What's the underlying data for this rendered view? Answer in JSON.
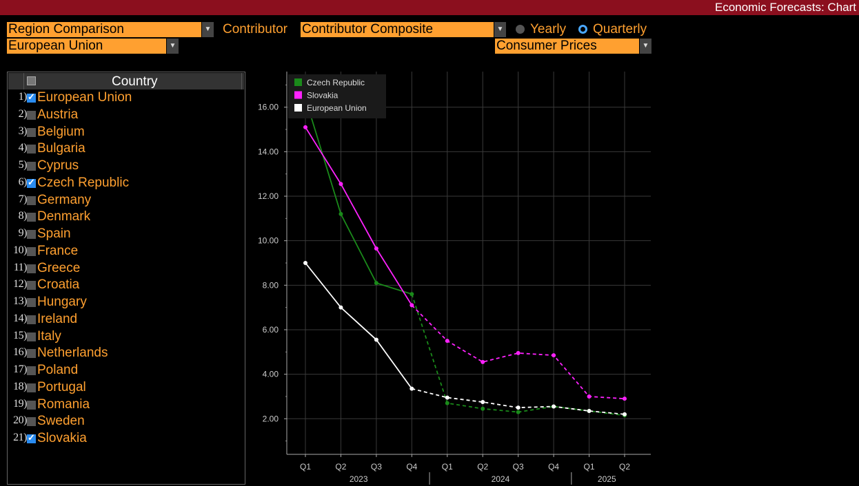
{
  "window": {
    "title": "Economic Forecasts: Chart"
  },
  "controls": {
    "comparison_select": "Region Comparison",
    "region_select": "European Union",
    "contributor_label": "Contributor",
    "contributor_select": "Contributor Composite",
    "indicator_select": "Consumer Prices",
    "frequency_options": [
      "Yearly",
      "Quarterly"
    ],
    "frequency_selected": "Quarterly"
  },
  "country_list": {
    "header": "Country",
    "items": [
      {
        "num": "1)",
        "name": "European Union",
        "checked": true
      },
      {
        "num": "2)",
        "name": "Austria",
        "checked": false
      },
      {
        "num": "3)",
        "name": "Belgium",
        "checked": false
      },
      {
        "num": "4)",
        "name": "Bulgaria",
        "checked": false
      },
      {
        "num": "5)",
        "name": "Cyprus",
        "checked": false
      },
      {
        "num": "6)",
        "name": "Czech Republic",
        "checked": true
      },
      {
        "num": "7)",
        "name": "Germany",
        "checked": false
      },
      {
        "num": "8)",
        "name": "Denmark",
        "checked": false
      },
      {
        "num": "9)",
        "name": "Spain",
        "checked": false
      },
      {
        "num": "10)",
        "name": "France",
        "checked": false
      },
      {
        "num": "11)",
        "name": "Greece",
        "checked": false
      },
      {
        "num": "12)",
        "name": "Croatia",
        "checked": false
      },
      {
        "num": "13)",
        "name": "Hungary",
        "checked": false
      },
      {
        "num": "14)",
        "name": "Ireland",
        "checked": false
      },
      {
        "num": "15)",
        "name": "Italy",
        "checked": false
      },
      {
        "num": "16)",
        "name": "Netherlands",
        "checked": false
      },
      {
        "num": "17)",
        "name": "Poland",
        "checked": false
      },
      {
        "num": "18)",
        "name": "Portugal",
        "checked": false
      },
      {
        "num": "19)",
        "name": "Romania",
        "checked": false
      },
      {
        "num": "20)",
        "name": "Sweden",
        "checked": false
      },
      {
        "num": "21)",
        "name": "Slovakia",
        "checked": true
      }
    ]
  },
  "chart_data": {
    "type": "line",
    "categories": [
      "Q1",
      "Q2",
      "Q3",
      "Q4",
      "Q1",
      "Q2",
      "Q3",
      "Q4",
      "Q1",
      "Q2"
    ],
    "year_labels": [
      {
        "label": "2023",
        "from": 0,
        "to": 3
      },
      {
        "label": "2024",
        "from": 4,
        "to": 7
      },
      {
        "label": "2025",
        "from": 8,
        "to": 9
      }
    ],
    "actual_through_index": 3,
    "ylim": [
      0.4,
      17.6
    ],
    "yticks": [
      2,
      4,
      6,
      8,
      10,
      12,
      14,
      16
    ],
    "ytick_labels": [
      "2.00",
      "4.00",
      "6.00",
      "8.00",
      "10.00",
      "12.00",
      "14.00",
      "16.00"
    ],
    "grid": true,
    "legend_position": "top-left",
    "series": [
      {
        "name": "Czech Republic",
        "color": "#1a8a1a",
        "values": [
          16.4,
          11.2,
          8.1,
          7.6,
          2.7,
          2.45,
          2.3,
          2.55,
          2.35,
          2.15
        ]
      },
      {
        "name": "Slovakia",
        "color": "#ff22ff",
        "values": [
          15.1,
          12.55,
          9.65,
          7.1,
          5.5,
          4.55,
          4.95,
          4.85,
          3.0,
          2.9
        ]
      },
      {
        "name": "European Union",
        "color": "#ffffff",
        "values": [
          9.0,
          7.0,
          5.55,
          3.35,
          2.95,
          2.75,
          2.5,
          2.55,
          2.35,
          2.2
        ]
      }
    ]
  }
}
